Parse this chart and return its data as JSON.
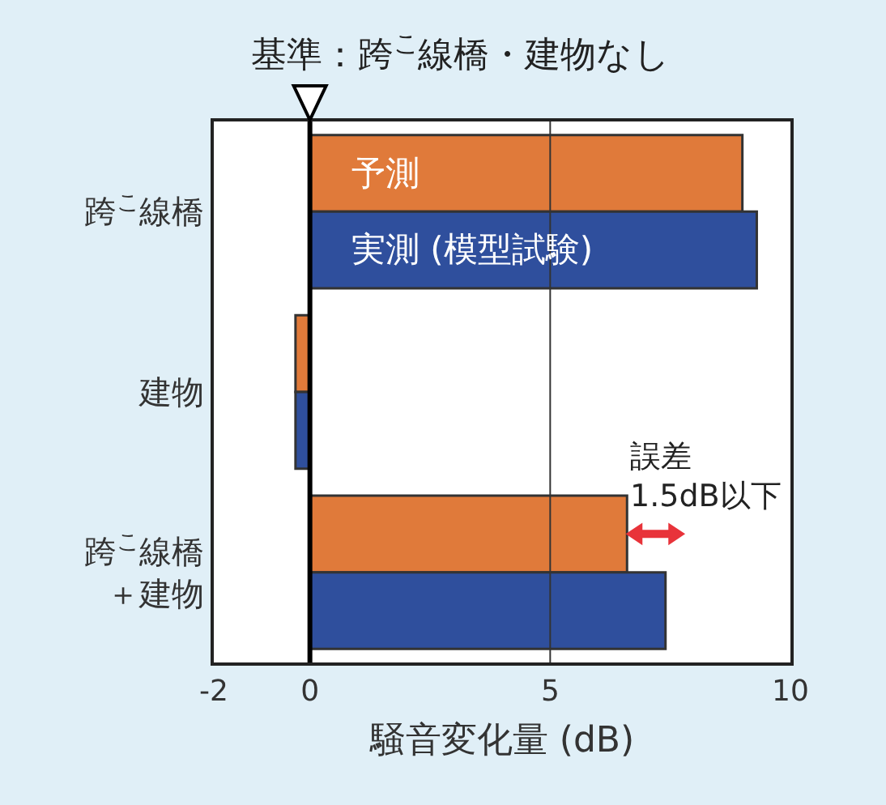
{
  "chart_data": {
    "type": "bar",
    "orientation": "horizontal",
    "categories": [
      "跨$^{こ}$線橋",
      "建物",
      "跨$^{こ}$線橋＋建物"
    ],
    "series": [
      {
        "name": "予測",
        "color": "#e07a3a",
        "values": [
          9.0,
          -0.3,
          6.6
        ]
      },
      {
        "name": "実測 (模型試験)",
        "color": "#2f4f9d",
        "values": [
          9.3,
          -0.3,
          7.4
        ]
      }
    ],
    "xlabel": "騒音変化量 (dB)",
    "xlim": [
      -2,
      10
    ],
    "xticks": [
      -2,
      0,
      5,
      10
    ],
    "legend": false,
    "ref_lines": [
      {
        "axis": "x",
        "value": 0,
        "label": "基準：跨$^{こ}$線橋・建物なし",
        "color": "#000000"
      },
      {
        "axis": "x",
        "value": 5,
        "color": "#333333"
      }
    ],
    "annotations": [
      "誤差\n1.5dB以下"
    ]
  }
}
